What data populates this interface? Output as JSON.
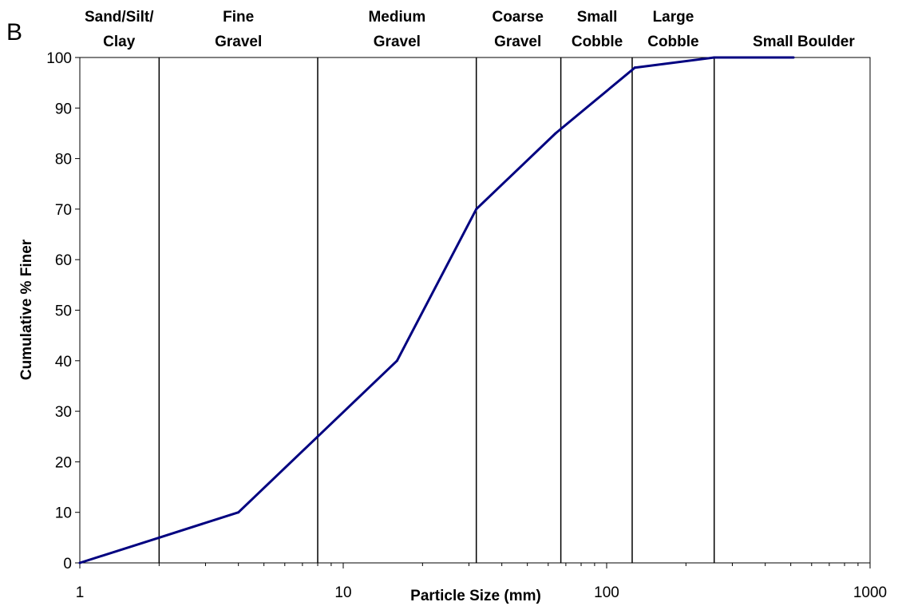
{
  "panel_label": "B",
  "chart_data": {
    "type": "line",
    "xscale": "log",
    "xlim": [
      1,
      1000
    ],
    "ylim": [
      0,
      100
    ],
    "xticks": [
      1,
      10,
      100,
      1000
    ],
    "xtick_labels": [
      "1",
      "10",
      "100",
      "1000"
    ],
    "yticks": [
      0,
      10,
      20,
      30,
      40,
      50,
      60,
      70,
      80,
      90,
      100
    ],
    "ytick_labels": [
      "0",
      "10",
      "20",
      "30",
      "40",
      "50",
      "60",
      "70",
      "80",
      "90",
      "100"
    ],
    "xlabel": "Particle Size (mm)",
    "ylabel": "Cumulative % Finer",
    "grid": false,
    "legend": "none",
    "series": [
      {
        "color": "#000080",
        "x": [
          1,
          2,
          4,
          8,
          16,
          32,
          64,
          128,
          256,
          512
        ],
        "y": [
          0,
          5,
          10,
          25,
          40,
          70,
          85,
          98,
          100,
          100
        ]
      }
    ],
    "boundaries": [
      2,
      8,
      32,
      67,
      125,
      256
    ],
    "size_classes": [
      {
        "lines": [
          "Sand/Silt/",
          "Clay"
        ],
        "x": 1.41
      },
      {
        "lines": [
          "Fine",
          "Gravel"
        ],
        "x": 4
      },
      {
        "lines": [
          "Medium",
          "Gravel"
        ],
        "x": 16
      },
      {
        "lines": [
          "Coarse",
          "Gravel"
        ],
        "x": 46
      },
      {
        "lines": [
          "Small",
          "Cobble"
        ],
        "x": 92
      },
      {
        "lines": [
          "Large",
          "Cobble"
        ],
        "x": 179
      },
      {
        "lines": [
          "Small Boulder"
        ],
        "x": 560
      }
    ]
  }
}
